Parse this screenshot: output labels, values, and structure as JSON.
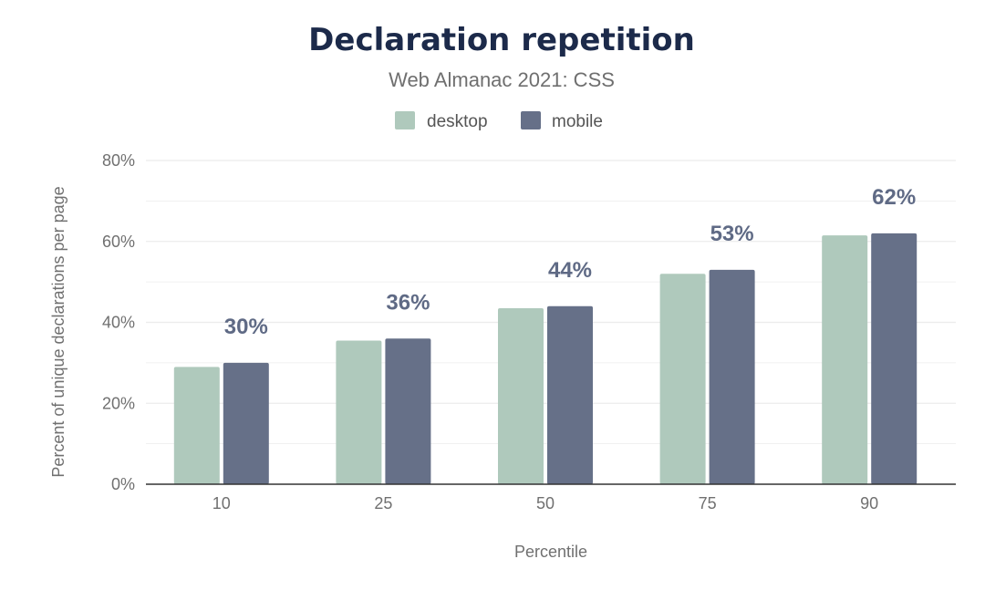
{
  "colors": {
    "desktop": "#afc9bc",
    "mobile": "#667088",
    "grid": "#ececec",
    "axis": "#333333"
  },
  "chart_data": {
    "type": "bar",
    "title": "Declaration repetition",
    "subtitle": "Web Almanac 2021: CSS",
    "xlabel": "Percentile",
    "ylabel": "Percent of unique declarations per page",
    "categories": [
      "10",
      "25",
      "50",
      "75",
      "90"
    ],
    "series": [
      {
        "name": "desktop",
        "values": [
          29,
          35.5,
          43.5,
          52,
          61.5
        ]
      },
      {
        "name": "mobile",
        "values": [
          30,
          36,
          44,
          53,
          62
        ]
      }
    ],
    "data_labels": [
      "30%",
      "36%",
      "44%",
      "53%",
      "62%"
    ],
    "ylim": [
      0,
      80
    ],
    "yticks": [
      0,
      20,
      40,
      60,
      80
    ],
    "ytick_labels": [
      "0%",
      "20%",
      "40%",
      "60%",
      "80%"
    ],
    "grid": true,
    "legend_position": "top-center"
  }
}
